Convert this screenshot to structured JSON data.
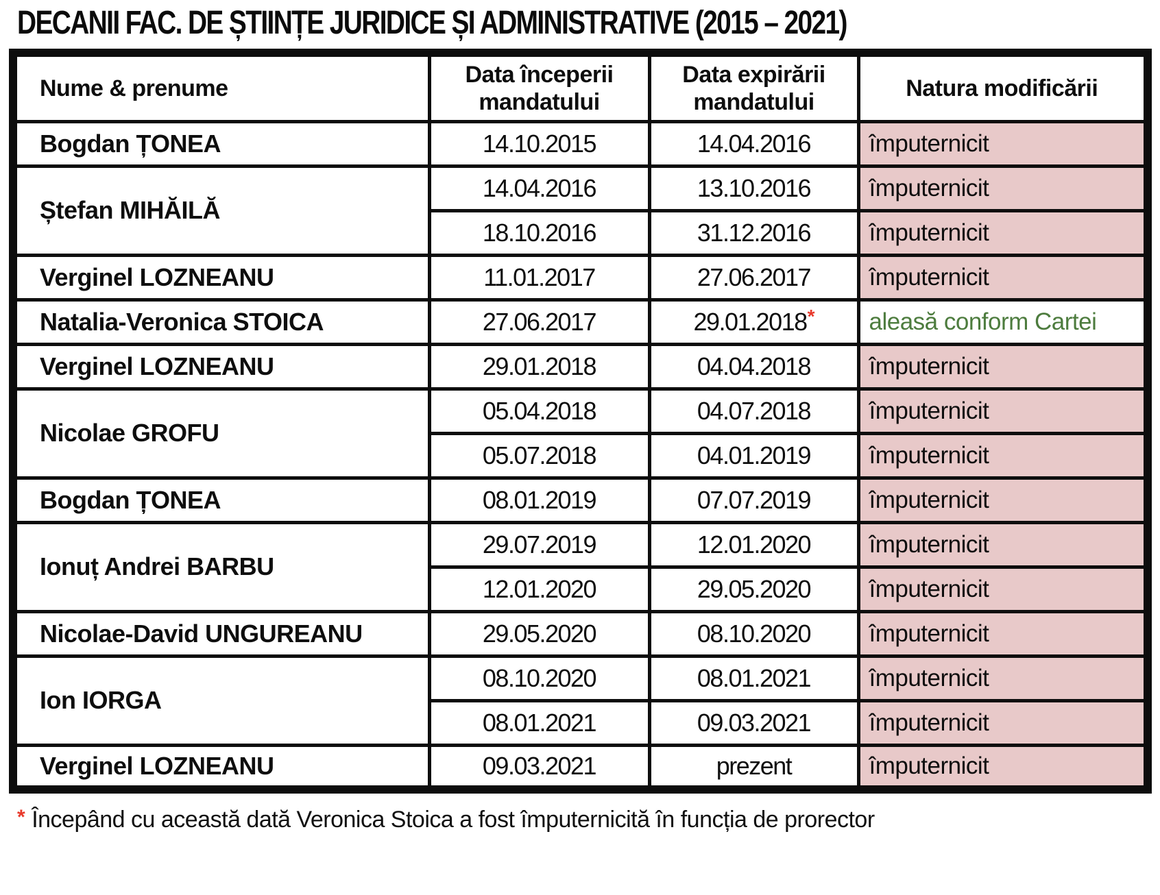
{
  "title": "DECANII FAC. DE ȘTIINȚE JURIDICE ȘI ADMINISTRATIVE (2015 – 2021)",
  "table": {
    "headers": [
      "Nume & prenume",
      "Data începerii mandatului",
      "Data expirării mandatului",
      "Natura modificării"
    ],
    "rows": [
      {
        "name": "Bogdan ȚONEA",
        "periods": [
          {
            "start": "14.10.2015",
            "end": "14.04.2016",
            "end_marker": "",
            "nature": "împuternicit",
            "style": "imputernicit"
          }
        ]
      },
      {
        "name": "Ștefan MIHĂILĂ",
        "periods": [
          {
            "start": "14.04.2016",
            "end": "13.10.2016",
            "end_marker": "",
            "nature": "împuternicit",
            "style": "imputernicit"
          },
          {
            "start": "18.10.2016",
            "end": "31.12.2016",
            "end_marker": "",
            "nature": "împuternicit",
            "style": "imputernicit"
          }
        ]
      },
      {
        "name": "Verginel LOZNEANU",
        "periods": [
          {
            "start": "11.01.2017",
            "end": "27.06.2017",
            "end_marker": "",
            "nature": "împuternicit",
            "style": "imputernicit"
          }
        ]
      },
      {
        "name": "Natalia-Veronica STOICA",
        "periods": [
          {
            "start": "27.06.2017",
            "end": "29.01.2018",
            "end_marker": "*",
            "nature": "aleasă conform Cartei",
            "style": "aleasa"
          }
        ]
      },
      {
        "name": "Verginel LOZNEANU",
        "periods": [
          {
            "start": "29.01.2018",
            "end": "04.04.2018",
            "end_marker": "",
            "nature": "împuternicit",
            "style": "imputernicit"
          }
        ]
      },
      {
        "name": "Nicolae GROFU",
        "periods": [
          {
            "start": "05.04.2018",
            "end": "04.07.2018",
            "end_marker": "",
            "nature": "împuternicit",
            "style": "imputernicit"
          },
          {
            "start": "05.07.2018",
            "end": "04.01.2019",
            "end_marker": "",
            "nature": "împuternicit",
            "style": "imputernicit"
          }
        ]
      },
      {
        "name": "Bogdan ȚONEA",
        "periods": [
          {
            "start": "08.01.2019",
            "end": "07.07.2019",
            "end_marker": "",
            "nature": "împuternicit",
            "style": "imputernicit"
          }
        ]
      },
      {
        "name": "Ionuț Andrei BARBU",
        "periods": [
          {
            "start": "29.07.2019",
            "end": "12.01.2020",
            "end_marker": "",
            "nature": "împuternicit",
            "style": "imputernicit"
          },
          {
            "start": "12.01.2020",
            "end": "29.05.2020",
            "end_marker": "",
            "nature": "împuternicit",
            "style": "imputernicit"
          }
        ]
      },
      {
        "name": "Nicolae-David UNGUREANU",
        "periods": [
          {
            "start": "29.05.2020",
            "end": "08.10.2020",
            "end_marker": "",
            "nature": "împuternicit",
            "style": "imputernicit"
          }
        ]
      },
      {
        "name": "Ion IORGA",
        "periods": [
          {
            "start": "08.10.2020",
            "end": "08.01.2021",
            "end_marker": "",
            "nature": "împuternicit",
            "style": "imputernicit"
          },
          {
            "start": "08.01.2021",
            "end": "09.03.2021",
            "end_marker": "",
            "nature": "împuternicit",
            "style": "imputernicit"
          }
        ]
      },
      {
        "name": "Verginel LOZNEANU",
        "periods": [
          {
            "start": "09.03.2021",
            "end": "prezent",
            "end_marker": "",
            "nature": "împuternicit",
            "style": "imputernicit"
          }
        ]
      }
    ]
  },
  "footnote": {
    "marker": "*",
    "text": "Începând cu această dată Veronica Stoica a fost împuternicită în funcția de prorector"
  },
  "colors": {
    "highlight_pink": "#e8c9c9",
    "elected_green": "#4d7c3e",
    "asterisk_red": "#e8392b",
    "border_black": "#0d0d0d"
  }
}
